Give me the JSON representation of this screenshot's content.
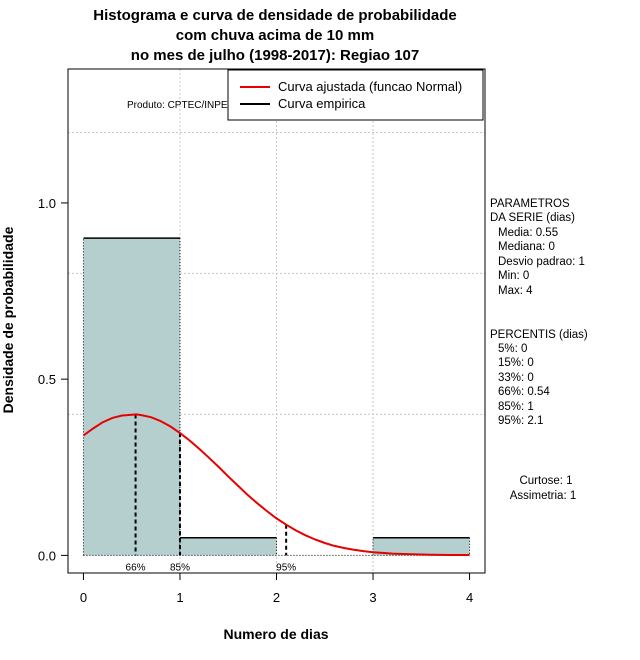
{
  "chart_data": {
    "type": "bar",
    "title_lines": [
      "Histograma e curva de densidade de probabilidade",
      "com chuva acima de 10 mm",
      "no mes de julho (1998-2017): Regiao 107"
    ],
    "xlabel": "Numero de dias",
    "ylabel": "Densidade de probabilidade",
    "xlim": [
      -0.16,
      4.16
    ],
    "ylim": [
      -0.05,
      1.38
    ],
    "x_ticks": [
      0,
      1,
      2,
      3,
      4
    ],
    "y_ticks": [
      0.0,
      0.5,
      1.0
    ],
    "y_tick_labels": [
      "0.0",
      "0.5",
      "1.0"
    ],
    "grid": true,
    "grid_x": [
      1,
      2,
      3
    ],
    "grid_y": [
      0.4,
      0.8,
      1.2
    ],
    "bars": [
      {
        "from": 0,
        "to": 1,
        "value": 0.9
      },
      {
        "from": 1,
        "to": 2,
        "value": 0.05
      },
      {
        "from": 2,
        "to": 3,
        "value": 0.0
      },
      {
        "from": 3,
        "to": 4,
        "value": 0.05
      }
    ],
    "bar_color": "#b5cfcf",
    "curve_color": "#e60000",
    "normal_curve": {
      "name": "Curva ajustada (funcao Normal)",
      "points": [
        [
          0,
          0.34
        ],
        [
          0.1,
          0.36
        ],
        [
          0.2,
          0.378
        ],
        [
          0.3,
          0.39
        ],
        [
          0.4,
          0.397
        ],
        [
          0.5,
          0.399
        ],
        [
          0.55,
          0.4
        ],
        [
          0.6,
          0.398
        ],
        [
          0.7,
          0.392
        ],
        [
          0.8,
          0.381
        ],
        [
          0.9,
          0.366
        ],
        [
          1.0,
          0.347
        ],
        [
          1.1,
          0.326
        ],
        [
          1.2,
          0.302
        ],
        [
          1.3,
          0.277
        ],
        [
          1.4,
          0.251
        ],
        [
          1.5,
          0.224
        ],
        [
          1.6,
          0.198
        ],
        [
          1.7,
          0.172
        ],
        [
          1.8,
          0.148
        ],
        [
          1.9,
          0.126
        ],
        [
          2.0,
          0.105
        ],
        [
          2.1,
          0.087
        ],
        [
          2.2,
          0.071
        ],
        [
          2.3,
          0.057
        ],
        [
          2.4,
          0.045
        ],
        [
          2.5,
          0.035
        ],
        [
          2.6,
          0.027
        ],
        [
          2.7,
          0.021
        ],
        [
          2.8,
          0.016
        ],
        [
          2.9,
          0.012
        ],
        [
          3.0,
          0.009
        ],
        [
          3.2,
          0.005
        ],
        [
          3.4,
          0.003
        ],
        [
          3.6,
          0.002
        ],
        [
          3.8,
          0.001
        ],
        [
          4.0,
          0.001
        ]
      ]
    },
    "empirical_curve": {
      "name": "Curva empirica"
    },
    "percentile_markers": [
      {
        "label": "66%",
        "x": 0.54
      },
      {
        "label": "85%",
        "x": 1.0
      },
      {
        "label": "95%",
        "x": 2.1
      }
    ],
    "legend_position": "top-right",
    "product_label": "Produto: CPTEC/INPE",
    "parametros": {
      "header": [
        "PARAMETROS",
        "DA SERIE (dias)"
      ],
      "lines": [
        "Media: 0.55",
        "Mediana: 0",
        "Desvio padrao: 1",
        "Min: 0",
        "Max: 4"
      ]
    },
    "percentis": {
      "header": "PERCENTIS (dias)",
      "lines": [
        "5%: 0",
        "15%: 0",
        "33%: 0",
        "66%: 0.54",
        "85%: 1",
        "95%: 2.1"
      ]
    },
    "shape": {
      "lines": [
        "Curtose: 1",
        "Assimetria: 1"
      ]
    }
  }
}
